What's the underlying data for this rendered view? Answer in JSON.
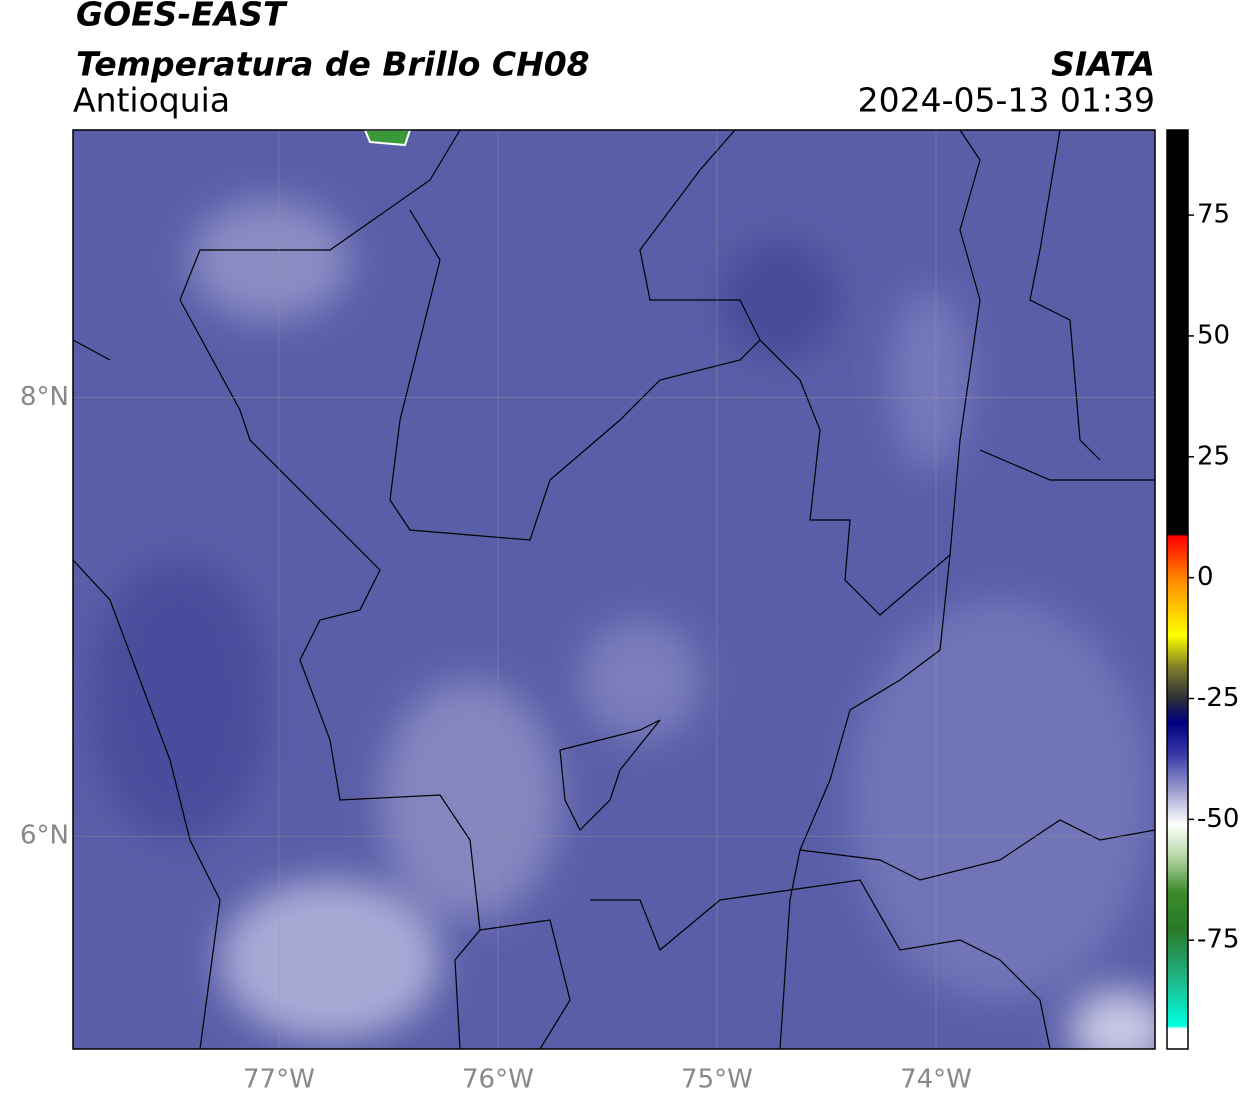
{
  "header": {
    "title": "GOES-EAST",
    "subtitle": "Temperatura de Brillo CH08",
    "region": "Antioquia",
    "source": "SIATA",
    "datetime": "2024-05-13 01:39"
  },
  "map": {
    "xlim": [
      -77.94,
      -73.0
    ],
    "ylim": [
      5.03,
      9.22
    ],
    "xticks": [
      {
        "value": -77,
        "label": "77°W"
      },
      {
        "value": -76,
        "label": "76°W"
      },
      {
        "value": -75,
        "label": "75°W"
      },
      {
        "value": -74,
        "label": "74°W"
      }
    ],
    "yticks": [
      {
        "value": 8,
        "label": "8°N"
      },
      {
        "value": 6,
        "label": "6°N"
      }
    ]
  },
  "colorbar": {
    "vlim": [
      -97.5,
      92.6
    ],
    "ticks": [
      75,
      50,
      25,
      0,
      -25,
      -50,
      -75
    ]
  }
}
